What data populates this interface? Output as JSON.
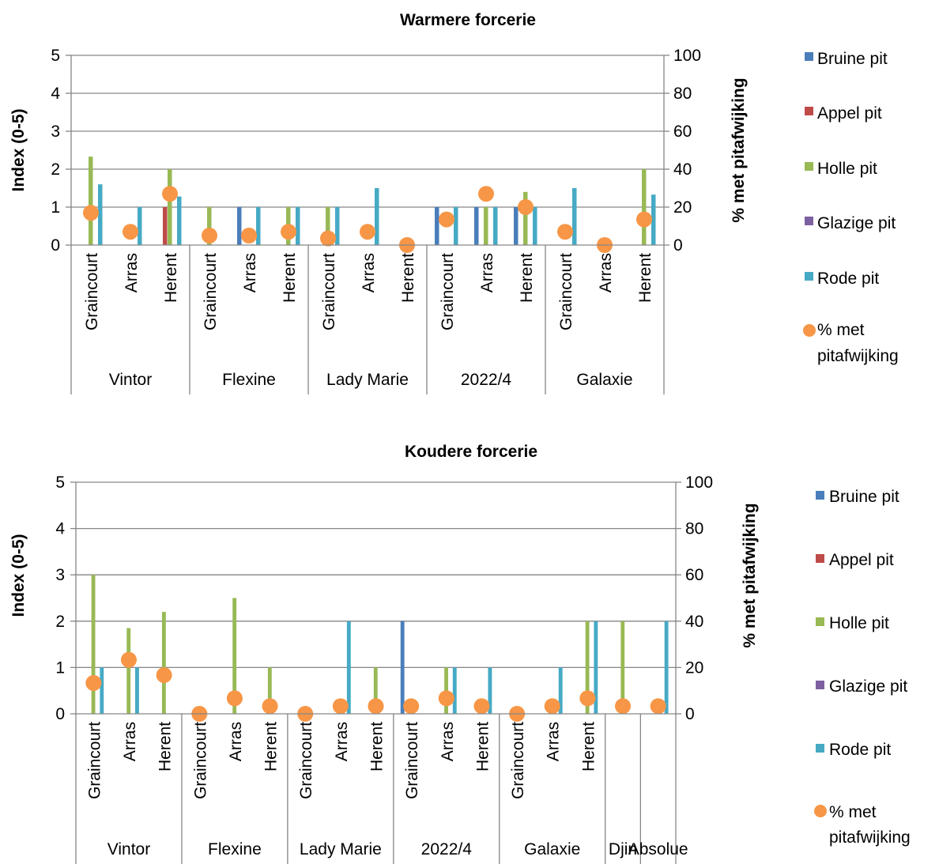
{
  "legend_items": {
    "bruine": "Bruine pit",
    "appel": "Appel pit",
    "holle": "Holle pit",
    "glazige": "Glazige pit",
    "rode": "Rode pit",
    "pct_line1": "% met",
    "pct_line2": "pitafwijking"
  },
  "colors": {
    "bruine": "#4A7EBB",
    "appel": "#BE4B48",
    "holle": "#98B954",
    "glazige": "#7D60A0",
    "rode": "#46AAC5",
    "pct": "#F79646",
    "axis": "#868686"
  },
  "chart_data": [
    {
      "type": "bar",
      "title": "Warmere forcerie",
      "ylabel": "Index (0-5)",
      "y2label": "% met pitafwijking",
      "ylim": [
        0,
        5
      ],
      "y2lim": [
        0,
        100
      ],
      "yticks": [
        "0",
        "1",
        "2",
        "3",
        "4",
        "5"
      ],
      "y2ticks": [
        "0",
        "20",
        "40",
        "60",
        "80",
        "100"
      ],
      "groups": [
        {
          "label": "Vintor",
          "size": 3
        },
        {
          "label": "Flexine",
          "size": 3
        },
        {
          "label": "Lady Marie",
          "size": 3
        },
        {
          "label": "2022/4",
          "size": 3
        },
        {
          "label": "Galaxie",
          "size": 3
        }
      ],
      "categories": [
        "Graincourt",
        "Arras",
        "Herent",
        "Graincourt",
        "Arras",
        "Herent",
        "Graincourt",
        "Arras",
        "Herent",
        "Graincourt",
        "Arras",
        "Herent",
        "Graincourt",
        "Arras",
        "Herent"
      ],
      "series": [
        {
          "name": "Bruine pit",
          "key": "bruine",
          "values": [
            0,
            0,
            0,
            0,
            1,
            0,
            0,
            0,
            0,
            1,
            1,
            1,
            0,
            0,
            0
          ]
        },
        {
          "name": "Appel pit",
          "key": "appel",
          "values": [
            0,
            0,
            1,
            0,
            0,
            0,
            0,
            0,
            0,
            0,
            0,
            0,
            0,
            0,
            0
          ]
        },
        {
          "name": "Holle pit",
          "key": "holle",
          "values": [
            2.33,
            0,
            2,
            1,
            0,
            1,
            1,
            0,
            0,
            0,
            1,
            1.4,
            0,
            0,
            2
          ]
        },
        {
          "name": "Glazige pit",
          "key": "glazige",
          "values": [
            0,
            0,
            0,
            0,
            0,
            0,
            0,
            0,
            0,
            0,
            0,
            0,
            0,
            0,
            0
          ]
        },
        {
          "name": "Rode pit",
          "key": "rode",
          "values": [
            1.6,
            1,
            1.28,
            0,
            1,
            1,
            1,
            1.5,
            0,
            1,
            1,
            1,
            1.5,
            0,
            1.33
          ]
        }
      ],
      "pct": [
        17,
        7,
        27,
        5,
        5,
        7,
        3.5,
        7,
        0,
        13.5,
        27,
        20,
        7,
        0,
        13.5
      ]
    },
    {
      "type": "bar",
      "title": "Koudere forcerie",
      "ylabel": "Index (0-5)",
      "y2label": "% met pitafwijking",
      "ylim": [
        0,
        5
      ],
      "y2lim": [
        0,
        100
      ],
      "yticks": [
        "0",
        "1",
        "2",
        "3",
        "4",
        "5"
      ],
      "y2ticks": [
        "0",
        "20",
        "40",
        "60",
        "80",
        "100"
      ],
      "groups": [
        {
          "label": "Vintor",
          "size": 3
        },
        {
          "label": "Flexine",
          "size": 3
        },
        {
          "label": "Lady Marie",
          "size": 3
        },
        {
          "label": "2022/4",
          "size": 3
        },
        {
          "label": "Galaxie",
          "size": 3
        },
        {
          "label": "Djin",
          "size": 1
        },
        {
          "label": "Absolue",
          "size": 1
        }
      ],
      "categories": [
        "Graincourt",
        "Arras",
        "Herent",
        "Graincourt",
        "Arras",
        "Herent",
        "Graincourt",
        "Arras",
        "Herent",
        "Graincourt",
        "Arras",
        "Herent",
        "Graincourt",
        "Arras",
        "Herent",
        "",
        ""
      ],
      "series": [
        {
          "name": "Bruine pit",
          "key": "bruine",
          "values": [
            0,
            0,
            0,
            0,
            0,
            0,
            0,
            0,
            0,
            2,
            0,
            0,
            0,
            0,
            0,
            0,
            0
          ]
        },
        {
          "name": "Appel pit",
          "key": "appel",
          "values": [
            0,
            0,
            0,
            0,
            0,
            0,
            0,
            0,
            0,
            0,
            0,
            0,
            0,
            0,
            0,
            0,
            0
          ]
        },
        {
          "name": "Holle pit",
          "key": "holle",
          "values": [
            3,
            1.85,
            2.2,
            0,
            2.5,
            1,
            0,
            0,
            1,
            0,
            1,
            0,
            0,
            0,
            2,
            2,
            0
          ]
        },
        {
          "name": "Glazige pit",
          "key": "glazige",
          "values": [
            0,
            0,
            0,
            0,
            0,
            0,
            0,
            0,
            0,
            0,
            0,
            0,
            0,
            0,
            0,
            0,
            0
          ]
        },
        {
          "name": "Rode pit",
          "key": "rode",
          "values": [
            1,
            1,
            0,
            0,
            0,
            0,
            0,
            2,
            0,
            0,
            1,
            1,
            0,
            1,
            2,
            0,
            2
          ]
        }
      ],
      "pct": [
        13.3,
        23.3,
        16.7,
        0,
        6.7,
        3.3,
        0,
        3.3,
        3.3,
        3.3,
        6.7,
        3.3,
        0,
        3.3,
        6.7,
        3.3,
        3.3
      ]
    }
  ]
}
